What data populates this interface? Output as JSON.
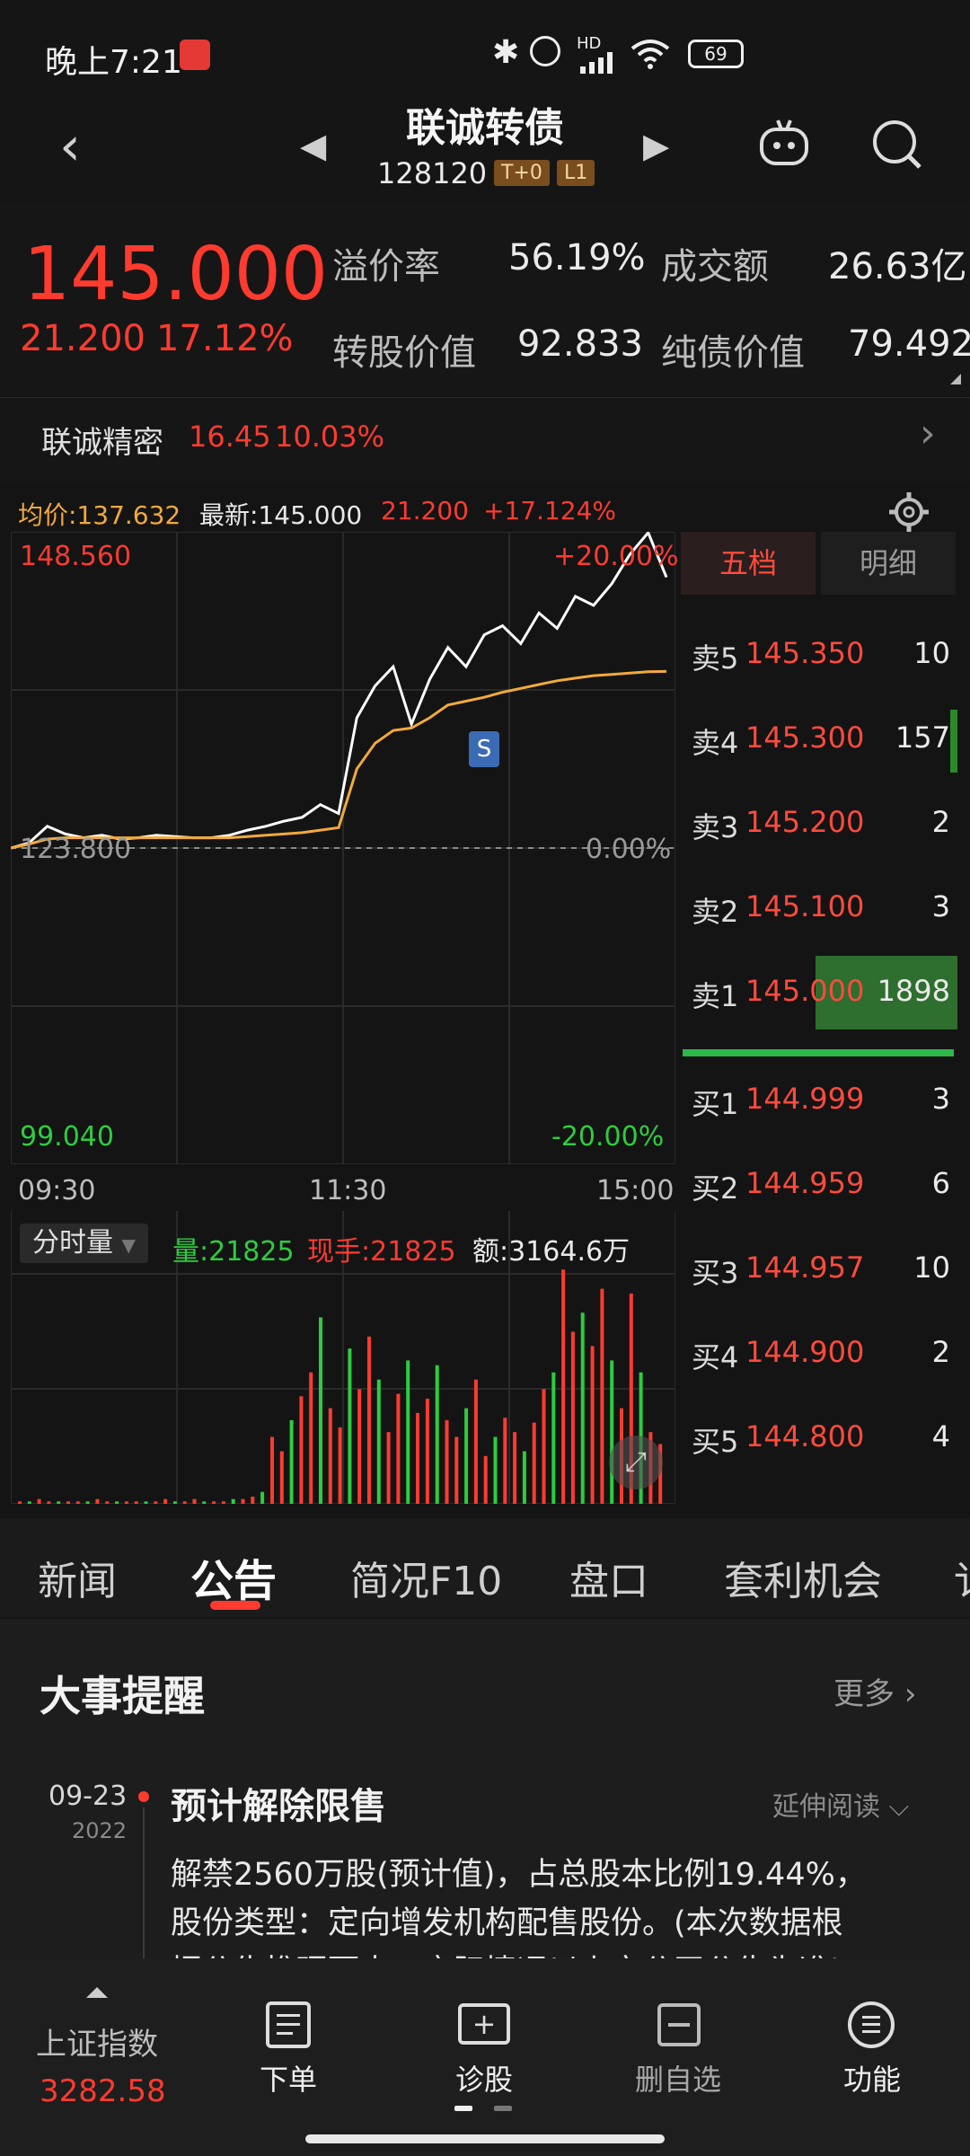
{
  "status": {
    "time": "晚上7:21",
    "battery": "69",
    "network": "HD"
  },
  "header": {
    "title": "联诚转债",
    "code": "128120",
    "tags": [
      "T+0",
      "L1"
    ]
  },
  "quote": {
    "price": "145.000",
    "change": "21.200",
    "change_pct": "17.12%",
    "premium_label": "溢价率",
    "premium_value": "56.19%",
    "turnover_label": "成交额",
    "turnover_value": "26.63亿",
    "conv_label": "转股价值",
    "conv_value": "92.833",
    "bond_label": "纯债价值",
    "bond_value": "79.492",
    "underlying_name": "联诚精密",
    "underlying_price": "16.45",
    "underlying_pct": "10.03%"
  },
  "chart_header": {
    "avg": "均价:137.632",
    "last": "最新:145.000",
    "chg": "21.200",
    "pct": "+17.124%"
  },
  "chart_data": {
    "type": "line",
    "top_price": "148.560",
    "top_pct": "+20.00%",
    "mid_price": "123.800",
    "mid_pct": "0.00%",
    "low_price": "99.040",
    "low_pct": "-20.00%",
    "x_ticks": [
      "09:30",
      "11:30",
      "15:00"
    ],
    "marker": "S",
    "series": [
      {
        "values": [
          123.8,
          124.2,
          125.5,
          124.9,
          124.6,
          124.8,
          124.5,
          124.6,
          124.8,
          124.7,
          124.6,
          124.6,
          124.8,
          125.2,
          125.5,
          125.9,
          126.2,
          127.2,
          126.5,
          134.0,
          136.5,
          138.0,
          133.5,
          137.0,
          139.5,
          138.0,
          140.5,
          141.2,
          139.8,
          142.2,
          141.0,
          143.5,
          142.8,
          144.5,
          146.8,
          148.5,
          145.0
        ]
      },
      {
        "values": [
          123.8,
          124.1,
          124.5,
          124.6,
          124.6,
          124.6,
          124.6,
          124.6,
          124.6,
          124.6,
          124.6,
          124.6,
          124.6,
          124.7,
          124.8,
          124.9,
          125.0,
          125.2,
          125.4,
          130.0,
          132.0,
          133.0,
          133.2,
          134.0,
          135.0,
          135.3,
          135.6,
          136.0,
          136.3,
          136.6,
          136.9,
          137.1,
          137.3,
          137.4,
          137.5,
          137.6,
          137.632
        ]
      }
    ]
  },
  "volume": {
    "selector": "分时量",
    "vol": "量:21825",
    "now": "现手:21825",
    "amount": "额:3164.6万",
    "bars": [
      0.01,
      0.01,
      0.02,
      0.01,
      0.01,
      0.01,
      0.01,
      0.01,
      0.02,
      0.01,
      0.01,
      0.01,
      0.01,
      0.01,
      0.01,
      0.02,
      0.01,
      0.01,
      0.02,
      0.01,
      0.01,
      0.01,
      0.02,
      0.02,
      0.03,
      0.05,
      0.28,
      0.22,
      0.35,
      0.45,
      0.55,
      0.78,
      0.4,
      0.32,
      0.65,
      0.48,
      0.7,
      0.52,
      0.3,
      0.46,
      0.6,
      0.38,
      0.44,
      0.58,
      0.35,
      0.28,
      0.4,
      0.52,
      0.2,
      0.28,
      0.36,
      0.3,
      0.22,
      0.34,
      0.48,
      0.55,
      0.98,
      0.72,
      0.8,
      0.66,
      0.9,
      0.6,
      0.4,
      0.88,
      0.55,
      0.3,
      0.25
    ]
  },
  "order_book": {
    "tabs": [
      "五档",
      "明细"
    ],
    "asks": [
      {
        "label": "卖5",
        "price": "145.350",
        "qty": "10"
      },
      {
        "label": "卖4",
        "price": "145.300",
        "qty": "157"
      },
      {
        "label": "卖3",
        "price": "145.200",
        "qty": "2"
      },
      {
        "label": "卖2",
        "price": "145.100",
        "qty": "3"
      },
      {
        "label": "卖1",
        "price": "145.000",
        "qty": "1898"
      }
    ],
    "bids": [
      {
        "label": "买1",
        "price": "144.999",
        "qty": "3"
      },
      {
        "label": "买2",
        "price": "144.959",
        "qty": "6"
      },
      {
        "label": "买3",
        "price": "144.957",
        "qty": "10"
      },
      {
        "label": "买4",
        "price": "144.900",
        "qty": "2"
      },
      {
        "label": "买5",
        "price": "144.800",
        "qty": "4"
      }
    ]
  },
  "tabs": [
    "新闻",
    "公告",
    "简况F10",
    "盘口",
    "套利机会",
    "讠"
  ],
  "events": {
    "title": "大事提醒",
    "more": "更多",
    "date": "09-23",
    "year": "2022",
    "event_title": "预计解除限售",
    "expand": "延伸阅读",
    "body_lines": [
      "解禁2560万股(预计值)，占总股本比例19.44%，",
      "股份类型：定向增发机构配售股份。(本次数据根",
      "据公告推理而来，实际情况以上市公司公告为准)"
    ]
  },
  "bottom_nav": {
    "index_name": "上证指数",
    "index_value": "3282.58",
    "items": [
      "下单",
      "诊股",
      "删自选",
      "功能"
    ]
  }
}
